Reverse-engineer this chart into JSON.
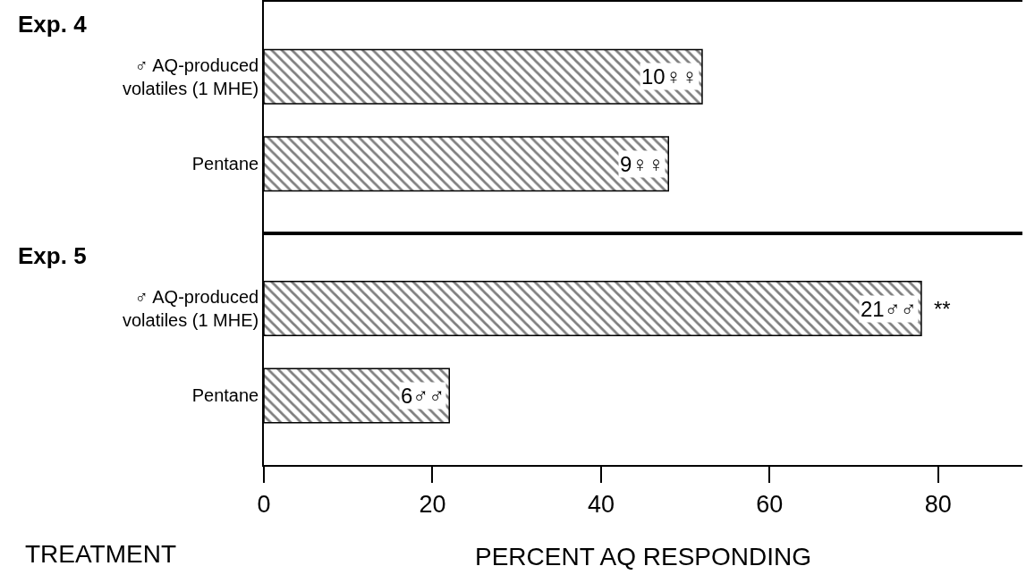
{
  "chart_data": [
    {
      "type": "bar",
      "orientation": "horizontal",
      "title": "Exp. 4",
      "categories": [
        "♂ AQ-produced\nvolatiles (1 MHE)",
        "Pentane"
      ],
      "values": [
        52,
        48
      ],
      "color": "#000000",
      "annotations": [
        {
          "text": "10♀♀",
          "x": 52,
          "y": "♂ AQ-produced\nvolatiles (1 MHE)"
        },
        {
          "text": "9♀♀",
          "x": 48,
          "y": "Pentane"
        }
      ],
      "xlim": [
        0,
        90
      ],
      "tick_labels": "y",
      "grid": false,
      "legend": false
    },
    {
      "type": "bar",
      "orientation": "horizontal",
      "title": "Exp. 5",
      "categories": [
        "♂ AQ-produced\nvolatiles (1 MHE)",
        "Pentane"
      ],
      "values": [
        78,
        22
      ],
      "color": "#000000",
      "annotations": [
        {
          "text": "21♂♂",
          "x": 78,
          "y": "♂ AQ-produced\nvolatiles (1 MHE)"
        },
        {
          "text": "6♂♂",
          "x": 22,
          "y": "Pentane"
        },
        {
          "text": "**",
          "x": 78,
          "y": "♂ AQ-produced\nvolatiles (1 MHE)"
        }
      ],
      "xlabel": "PERCENT AQ RESPONDING",
      "ylabel": "TREATMENT",
      "xlim": [
        0,
        90
      ],
      "xticks": [
        0,
        20,
        40,
        60,
        80
      ],
      "grid": false,
      "legend": false
    }
  ]
}
